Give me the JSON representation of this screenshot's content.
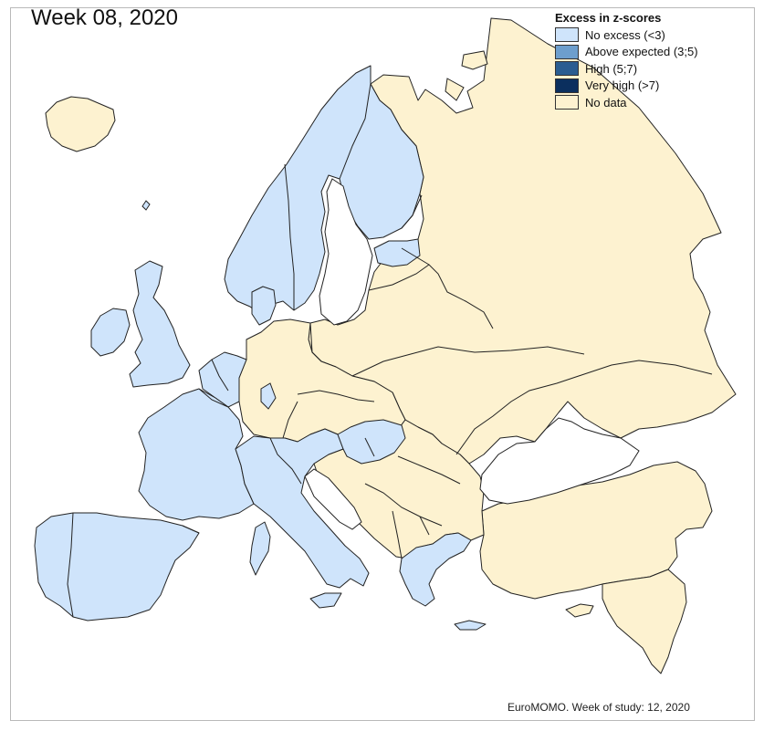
{
  "map": {
    "title": "Week 08, 2020",
    "credit": "EuroMOMO. Week of study: 12, 2020"
  },
  "legend": {
    "title": "Excess in z-scores",
    "items": [
      {
        "label": "No excess (<3)",
        "color": "#cfe4fb"
      },
      {
        "label": "Above expected (3;5)",
        "color": "#6d9ecd"
      },
      {
        "label": "High (5;7)",
        "color": "#2a5d91"
      },
      {
        "label": "Very high (>7)",
        "color": "#0b2f5e"
      },
      {
        "label": "No data",
        "color": "#fdf2d0"
      }
    ]
  },
  "colors": {
    "no_excess": "#cfe4fb",
    "no_data": "#fdf2d0",
    "border": "#222222",
    "frame": "#b9b9b9"
  }
}
